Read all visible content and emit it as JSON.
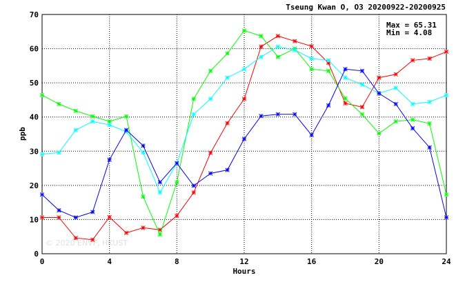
{
  "chart_data": {
    "type": "line",
    "title": "Tseung Kwan O, O3 20200922-20200925",
    "xlabel": "Hours",
    "ylabel": "ppb",
    "xlim": [
      0,
      24
    ],
    "ylim": [
      0,
      70
    ],
    "xticks": [
      "0",
      "4",
      "8",
      "12",
      "16",
      "20",
      "24"
    ],
    "yticks": [
      "0",
      "10",
      "20",
      "30",
      "40",
      "50",
      "60",
      "70"
    ],
    "grid": true,
    "stats": {
      "max_text": "Max = 65.31",
      "min_text": "Min =  4.08"
    },
    "watermark": "© 2020  ENVF, HKUST",
    "x": [
      0,
      1,
      2,
      3,
      4,
      5,
      6,
      7,
      8,
      9,
      10,
      11,
      12,
      13,
      14,
      15,
      16,
      17,
      18,
      19,
      20,
      21,
      22,
      23,
      24
    ],
    "series": [
      {
        "color": "#ff0000",
        "values": [
          10.6,
          10.6,
          4.6,
          4.1,
          10.7,
          6.1,
          7.6,
          7.0,
          11.1,
          17.9,
          29.5,
          38.2,
          45.3,
          60.6,
          63.7,
          62.2,
          60.7,
          55.8,
          44.0,
          42.9,
          51.5,
          52.5,
          56.6,
          57.1,
          59.1
        ]
      },
      {
        "color": "#00ff00",
        "values": [
          46.4,
          43.8,
          41.8,
          40.2,
          38.7,
          40.2,
          16.7,
          5.6,
          20.9,
          45.3,
          53.5,
          58.6,
          65.3,
          63.7,
          57.6,
          60.0,
          54.0,
          53.5,
          45.4,
          40.8,
          35.2,
          38.7,
          39.2,
          38.1,
          17.3
        ]
      },
      {
        "color": "#00ffff",
        "values": [
          29.1,
          29.6,
          36.2,
          38.7,
          37.7,
          35.7,
          29.6,
          17.9,
          26.5,
          40.8,
          45.3,
          51.5,
          54.0,
          57.6,
          60.6,
          59.6,
          57.1,
          56.6,
          51.5,
          49.5,
          46.9,
          48.5,
          43.8,
          44.4,
          46.4
        ]
      },
      {
        "color": "#0000ff",
        "values": [
          17.3,
          12.7,
          10.6,
          12.2,
          27.5,
          36.2,
          31.6,
          20.9,
          26.5,
          19.9,
          23.5,
          24.5,
          33.6,
          40.3,
          40.8,
          40.8,
          34.7,
          43.4,
          54.0,
          53.5,
          46.9,
          43.8,
          36.7,
          31.1,
          10.6
        ]
      }
    ]
  }
}
